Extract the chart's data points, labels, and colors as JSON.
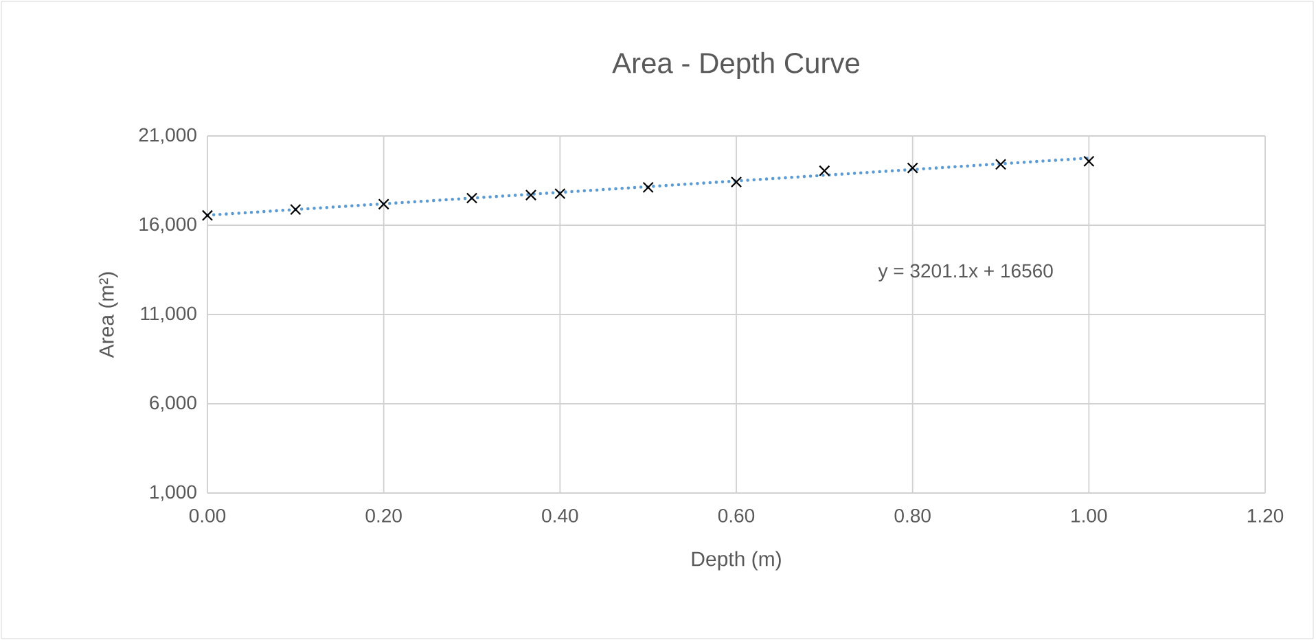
{
  "chart_data": {
    "type": "scatter",
    "title": "Area - Depth Curve",
    "xlabel": "Depth (m)",
    "ylabel": "Area (m²)",
    "xlim": [
      0,
      1.2
    ],
    "ylim": [
      1000,
      21000
    ],
    "xticks": [
      {
        "value": 0,
        "label": "0.00"
      },
      {
        "value": 0.2,
        "label": "0.20"
      },
      {
        "value": 0.4,
        "label": "0.40"
      },
      {
        "value": 0.6,
        "label": "0.60"
      },
      {
        "value": 0.8,
        "label": "0.80"
      },
      {
        "value": 1.0,
        "label": "1.00"
      },
      {
        "value": 1.2,
        "label": "1.20"
      }
    ],
    "yticks": [
      {
        "value": 1000,
        "label": "1,000"
      },
      {
        "value": 6000,
        "label": "6,000"
      },
      {
        "value": 11000,
        "label": "11,000"
      },
      {
        "value": 16000,
        "label": "16,000"
      },
      {
        "value": 21000,
        "label": "21,000"
      }
    ],
    "grid": true,
    "series": [
      {
        "type": "line",
        "color": "#5b9bd5",
        "line_style": "dotted",
        "marker": "none",
        "x": [
          0,
          1.0
        ],
        "values": [
          16560,
          19760
        ]
      },
      {
        "color": "#000000",
        "marker": "cross",
        "x": [
          0,
          0.1,
          0.2,
          0.3,
          0.367,
          0.4,
          0.5,
          0.6,
          0.7,
          0.8,
          0.9,
          1.0
        ],
        "values": [
          16550,
          16880,
          17180,
          17520,
          17690,
          17770,
          18120,
          18420,
          19050,
          19210,
          19410,
          19580
        ]
      }
    ],
    "annotations": [
      "y = 3201.1x + 16560"
    ]
  }
}
